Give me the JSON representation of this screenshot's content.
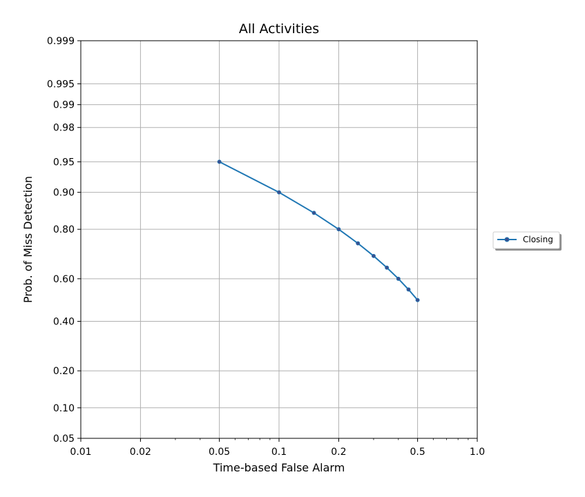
{
  "chart_data": {
    "type": "line",
    "title": "All Activities",
    "xlabel": "Time-based False Alarm",
    "ylabel": "Prob. of Miss Detection",
    "x_scale": "probit",
    "y_scale": "probit",
    "xlim": [
      0.01,
      1.0
    ],
    "ylim": [
      0.05,
      0.999
    ],
    "x_ticks": [
      {
        "value": 0.01,
        "label": "0.01"
      },
      {
        "value": 0.02,
        "label": "0.02"
      },
      {
        "value": 0.05,
        "label": "0.05"
      },
      {
        "value": 0.1,
        "label": "0.1"
      },
      {
        "value": 0.2,
        "label": "0.2"
      },
      {
        "value": 0.5,
        "label": "0.5"
      },
      {
        "value": 1.0,
        "label": "1.0"
      }
    ],
    "y_ticks": [
      {
        "value": 0.05,
        "label": "0.05"
      },
      {
        "value": 0.1,
        "label": "0.10"
      },
      {
        "value": 0.2,
        "label": "0.20"
      },
      {
        "value": 0.4,
        "label": "0.40"
      },
      {
        "value": 0.6,
        "label": "0.60"
      },
      {
        "value": 0.8,
        "label": "0.80"
      },
      {
        "value": 0.9,
        "label": "0.90"
      },
      {
        "value": 0.95,
        "label": "0.95"
      },
      {
        "value": 0.98,
        "label": "0.98"
      },
      {
        "value": 0.99,
        "label": "0.99"
      },
      {
        "value": 0.995,
        "label": "0.995"
      },
      {
        "value": 0.999,
        "label": "0.999"
      }
    ],
    "grid": true,
    "legend_position": "outside-right",
    "series": [
      {
        "name": "Closing",
        "color": "#1f77b4",
        "marker_color": "#3b4f8f",
        "x": [
          0.05,
          0.1,
          0.15,
          0.2,
          0.25,
          0.3,
          0.35,
          0.4,
          0.45,
          0.5
        ],
        "y": [
          0.95,
          0.9,
          0.85,
          0.8,
          0.75,
          0.7,
          0.65,
          0.6,
          0.55,
          0.5
        ]
      }
    ]
  }
}
